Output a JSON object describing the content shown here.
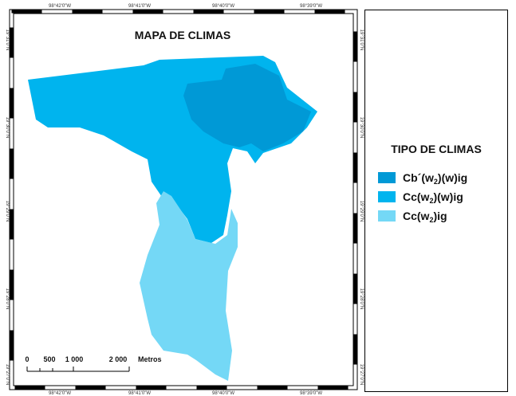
{
  "map": {
    "title": "MAPA DE CLIMAS",
    "top_labels": [
      "98°42'0\"W",
      "98°41'0\"W",
      "98°40'0\"W",
      "98°39'0\"W"
    ],
    "bottom_labels": [
      "98°42'0\"W",
      "98°41'0\"W",
      "98°40'0\"W",
      "98°39'0\"W"
    ],
    "left_labels": [
      "19°31'0\"N",
      "19°30'0\"N",
      "19°29'0\"N",
      "19°28'0\"N",
      "19°27'0\"N"
    ],
    "right_labels": [
      "19°31'0\"N",
      "19°30'0\"N",
      "19°29'0\"N",
      "19°28'0\"N",
      "19°27'0\"N"
    ],
    "scale_bar": {
      "labels": [
        "0",
        "500",
        "1 000",
        "2 000"
      ],
      "unit": "Metros"
    }
  },
  "legend": {
    "title": "TIPO DE CLIMAS",
    "items": [
      {
        "parts": [
          "Cb´(w",
          "2",
          ")(w)ig"
        ],
        "color": "#0099d6"
      },
      {
        "parts": [
          "Cc(w",
          "2",
          ")(w)ig"
        ],
        "color": "#00b4ee"
      },
      {
        "parts": [
          "Cc(w",
          "2",
          ")ig"
        ],
        "color": "#74d8f6"
      }
    ]
  }
}
